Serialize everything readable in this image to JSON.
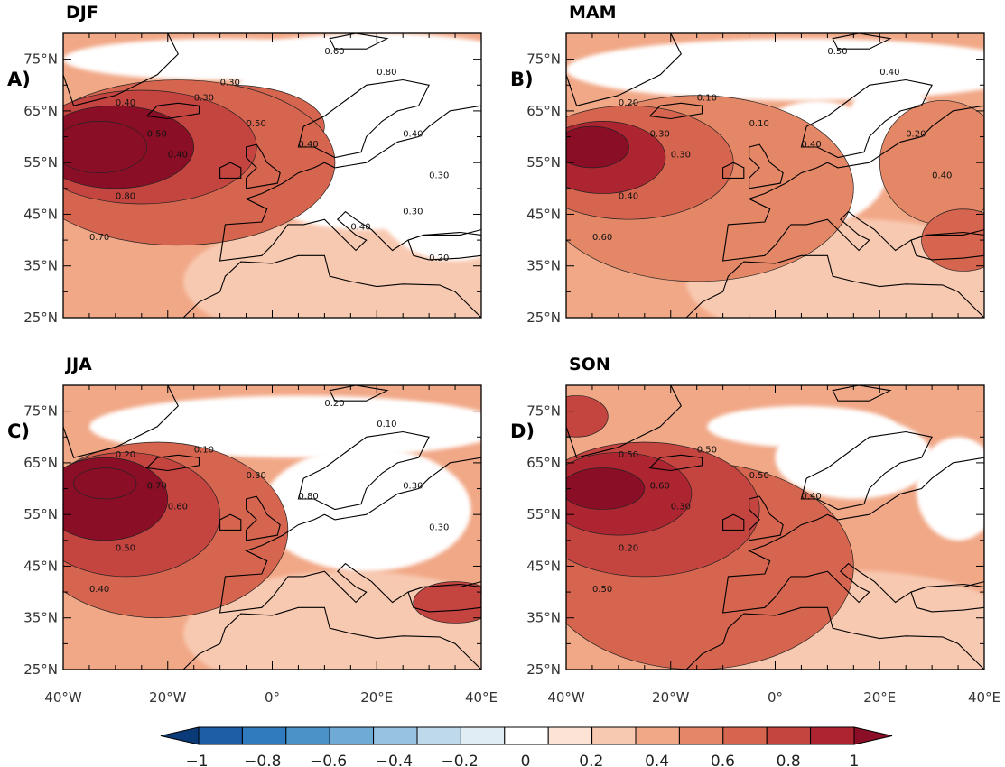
{
  "figure": {
    "panels": [
      {
        "title": "DJF",
        "letter": "A)",
        "contour_labels": [
          "0.40",
          "0.30",
          "0.50",
          "0.40",
          "0.50",
          "0.40",
          "0.80",
          "0.70",
          "0.60",
          "0.80",
          "0.40",
          "0.30",
          "0.40",
          "0.30",
          "0.20",
          "0.30"
        ],
        "blobs": [
          {
            "lon": -33,
            "lat": 58,
            "rlon": 9,
            "rlat": 5,
            "value": 0.95
          },
          {
            "lon": -30,
            "lat": 58,
            "rlon": 15,
            "rlat": 8,
            "value": 0.85
          },
          {
            "lon": -25,
            "lat": 58,
            "rlon": 22,
            "rlat": 11,
            "value": 0.7
          },
          {
            "lon": -18,
            "lat": 55,
            "rlon": 30,
            "rlat": 16,
            "value": 0.55
          },
          {
            "lon": -8,
            "lat": 62,
            "rlon": 18,
            "rlat": 8,
            "value": 0.5
          }
        ],
        "white": [
          {
            "lon": 18,
            "lat": 60,
            "rlon": 30,
            "rlat": 18
          },
          {
            "lon": 20,
            "lat": 74,
            "rlon": 30,
            "rlat": 6
          },
          {
            "lon": 35,
            "lat": 48,
            "rlon": 15,
            "rlat": 12
          },
          {
            "lon": -10,
            "lat": 75,
            "rlon": 30,
            "rlat": 4
          }
        ]
      },
      {
        "title": "MAM",
        "letter": "B)",
        "contour_labels": [
          "0.20",
          "0.10",
          "0.10",
          "0.40",
          "0.30",
          "0.30",
          "0.40",
          "0.60",
          "0.50",
          "0.40",
          "0.20",
          "0.40"
        ],
        "blobs": [
          {
            "lon": -35,
            "lat": 58,
            "rlon": 7,
            "rlat": 4,
            "value": 0.85
          },
          {
            "lon": -33,
            "lat": 56,
            "rlon": 12,
            "rlat": 7,
            "value": 0.75
          },
          {
            "lon": -28,
            "lat": 55,
            "rlon": 20,
            "rlat": 11,
            "value": 0.6
          },
          {
            "lon": -15,
            "lat": 50,
            "rlon": 30,
            "rlat": 18,
            "value": 0.45
          },
          {
            "lon": 36,
            "lat": 40,
            "rlon": 8,
            "rlat": 6,
            "value": 0.6
          },
          {
            "lon": 32,
            "lat": 55,
            "rlon": 12,
            "rlat": 12,
            "value": 0.45
          }
        ],
        "white": [
          {
            "lon": 5,
            "lat": 73,
            "rlon": 45,
            "rlat": 6
          },
          {
            "lon": 8,
            "lat": 55,
            "rlon": 14,
            "rlat": 12
          },
          {
            "lon": 22,
            "lat": 63,
            "rlon": 8,
            "rlat": 8
          }
        ]
      },
      {
        "title": "JJA",
        "letter": "C)",
        "contour_labels": [
          "0.20",
          "0.10",
          "0.30",
          "0.80",
          "0.70",
          "0.60",
          "0.50",
          "0.40",
          "0.20",
          "0.10",
          "0.30",
          "0.30"
        ],
        "blobs": [
          {
            "lon": -32,
            "lat": 61,
            "rlon": 6,
            "rlat": 3,
            "value": 0.9
          },
          {
            "lon": -32,
            "lat": 58,
            "rlon": 12,
            "rlat": 8,
            "value": 0.8
          },
          {
            "lon": -28,
            "lat": 55,
            "rlon": 18,
            "rlat": 12,
            "value": 0.68
          },
          {
            "lon": -22,
            "lat": 52,
            "rlon": 25,
            "rlat": 17,
            "value": 0.55
          },
          {
            "lon": 35,
            "lat": 38,
            "rlon": 8,
            "rlat": 4,
            "value": 0.65
          }
        ],
        "white": [
          {
            "lon": 5,
            "lat": 72,
            "rlon": 40,
            "rlat": 6
          },
          {
            "lon": 18,
            "lat": 56,
            "rlon": 20,
            "rlat": 12
          }
        ]
      },
      {
        "title": "SON",
        "letter": "D)",
        "contour_labels": [
          "0.50",
          "0.50",
          "0.50",
          "0.40",
          "0.60",
          "0.30",
          "0.20",
          "0.50"
        ],
        "blobs": [
          {
            "lon": -33,
            "lat": 60,
            "rlon": 8,
            "rlat": 4,
            "value": 0.9
          },
          {
            "lon": -30,
            "lat": 59,
            "rlon": 14,
            "rlat": 8,
            "value": 0.78
          },
          {
            "lon": -25,
            "lat": 56,
            "rlon": 22,
            "rlat": 13,
            "value": 0.65
          },
          {
            "lon": -38,
            "lat": 74,
            "rlon": 6,
            "rlat": 4,
            "value": 0.7
          },
          {
            "lon": -15,
            "lat": 45,
            "rlon": 30,
            "rlat": 20,
            "value": 0.5
          }
        ],
        "white": [
          {
            "lon": 15,
            "lat": 66,
            "rlon": 15,
            "rlat": 8
          },
          {
            "lon": 35,
            "lat": 60,
            "rlon": 8,
            "rlat": 10
          },
          {
            "lon": 5,
            "lat": 72,
            "rlon": 18,
            "rlat": 4
          }
        ]
      }
    ],
    "lat_ticks": [
      "75°N",
      "65°N",
      "55°N",
      "45°N",
      "35°N",
      "25°N"
    ],
    "lat_values": [
      75,
      65,
      55,
      45,
      35,
      25
    ],
    "lon_ticks": [
      "40°W",
      "20°W",
      "0°",
      "20°E",
      "40°E"
    ],
    "lon_values": [
      -40,
      -20,
      0,
      20,
      40
    ],
    "extent": {
      "lon": [
        -40,
        40
      ],
      "lat": [
        25,
        80
      ]
    },
    "colorbar": {
      "labels": [
        "−1",
        "−0.8",
        "−0.6",
        "−0.4",
        "−0.2",
        "0",
        "0.2",
        "0.4",
        "0.6",
        "0.8",
        "1"
      ],
      "values": [
        -1,
        -0.8,
        -0.6,
        -0.4,
        -0.2,
        0,
        0.2,
        0.4,
        0.6,
        0.8,
        1
      ],
      "colors": [
        "#0a3a78",
        "#1d5ea6",
        "#2f7bbd",
        "#4a93c9",
        "#6faad4",
        "#97c3e0",
        "#bed9ec",
        "#e0edf5",
        "#ffffff",
        "#fce3d6",
        "#f8c9b1",
        "#f1a887",
        "#e48766",
        "#d6654f",
        "#c44440",
        "#ad2531",
        "#8a0e26"
      ]
    }
  }
}
